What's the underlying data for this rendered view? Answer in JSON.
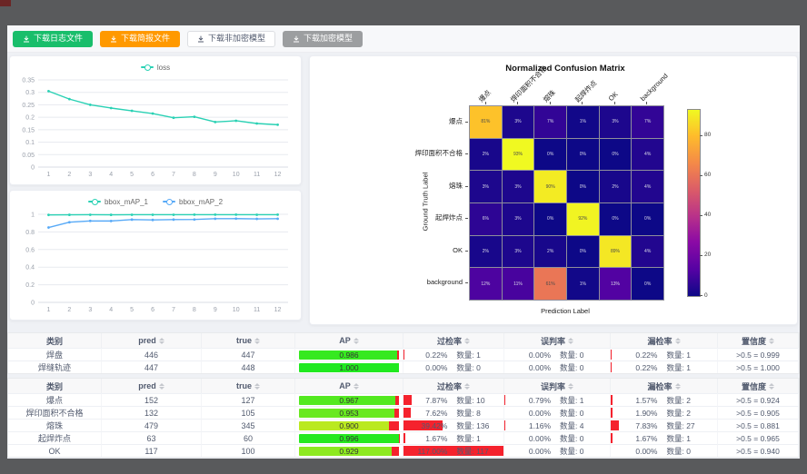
{
  "toolbar": {
    "buttons": [
      {
        "label": "下载日志文件",
        "variant": "green",
        "bg": "#19be6b",
        "fg": "#ffffff"
      },
      {
        "label": "下载简报文件",
        "variant": "orange",
        "bg": "#ff9900",
        "fg": "#ffffff"
      },
      {
        "label": "下载非加密模型",
        "variant": "plain",
        "bg": "#ffffff",
        "fg": "#515a6e"
      },
      {
        "label": "下载加密模型",
        "variant": "gray",
        "bg": "#9c9ea0",
        "fg": "#ffffff"
      }
    ]
  },
  "chart_data": [
    {
      "type": "line",
      "title": "loss",
      "x": [
        1,
        2,
        3,
        4,
        5,
        6,
        7,
        8,
        9,
        10,
        11,
        12
      ],
      "ylim": [
        0,
        0.35
      ],
      "yticks": [
        0,
        0.05,
        0.1,
        0.15,
        0.2,
        0.25,
        0.3,
        0.35
      ],
      "legend_position": "top",
      "grid": true,
      "series": [
        {
          "name": "loss",
          "color": "#2ad1b4",
          "values": [
            0.305,
            0.273,
            0.25,
            0.237,
            0.226,
            0.215,
            0.198,
            0.202,
            0.181,
            0.186,
            0.175,
            0.17
          ]
        }
      ]
    },
    {
      "type": "line",
      "title": "bbox_mAP",
      "x": [
        1,
        2,
        3,
        4,
        5,
        6,
        7,
        8,
        9,
        10,
        11,
        12
      ],
      "ylim": [
        0,
        1
      ],
      "yticks": [
        0,
        0.2,
        0.4,
        0.6,
        0.8,
        1
      ],
      "legend_position": "top",
      "grid": true,
      "series": [
        {
          "name": "bbox_mAP_1",
          "color": "#2ad1b4",
          "values": [
            0.993,
            0.994,
            0.995,
            0.994,
            0.995,
            0.995,
            0.995,
            0.996,
            0.996,
            0.996,
            0.995,
            0.996
          ]
        },
        {
          "name": "bbox_mAP_2",
          "color": "#58aaf7",
          "values": [
            0.85,
            0.91,
            0.925,
            0.924,
            0.94,
            0.936,
            0.94,
            0.941,
            0.95,
            0.951,
            0.948,
            0.95
          ]
        }
      ]
    },
    {
      "type": "heatmap",
      "title": "Normalized Confusion Matrix",
      "xlabel": "Prediction Label",
      "ylabel": "Ground Truth Label",
      "labels": [
        "爆点",
        "焊印面积不合格",
        "熔珠",
        "起焊炸点",
        "OK",
        "background"
      ],
      "unit": "%",
      "vmax": 93,
      "colormap": "plasma",
      "colorbar_ticks": [
        80,
        60,
        40,
        20,
        0
      ],
      "matrix": [
        [
          81,
          3,
          7,
          1,
          3,
          7
        ],
        [
          2,
          93,
          0,
          0,
          0,
          4
        ],
        [
          3,
          3,
          90,
          0,
          2,
          4
        ],
        [
          6,
          3,
          0,
          92,
          0,
          0
        ],
        [
          2,
          3,
          2,
          0,
          89,
          4
        ],
        [
          12,
          11,
          61,
          1,
          13,
          0
        ]
      ]
    }
  ],
  "tables": {
    "count_label": "数量:",
    "accent_green": "#3ddc3d",
    "accent_red": "#f5222d",
    "columns": [
      {
        "label": "类别",
        "sortable": false
      },
      {
        "label": "pred",
        "sortable": true
      },
      {
        "label": "true",
        "sortable": true
      },
      {
        "label": "AP",
        "sortable": true
      },
      {
        "label": "过检率",
        "sortable": true
      },
      {
        "label": "误判率",
        "sortable": true
      },
      {
        "label": "漏检率",
        "sortable": true
      },
      {
        "label": "置信度",
        "sortable": true
      }
    ],
    "groups": [
      {
        "rows": [
          {
            "name": "焊盘",
            "pred": 446,
            "true": 447,
            "ap": 0.986,
            "over_pct": "0.22%",
            "over_cnt": 1,
            "over_val": 0.22,
            "mis_pct": "0.00%",
            "mis_cnt": 0,
            "mis_val": 0,
            "miss_pct": "0.22%",
            "miss_cnt": 1,
            "miss_val": 0.22,
            "conf": ">0.5 = 0.999"
          },
          {
            "name": "焊缝轨迹",
            "pred": 447,
            "true": 448,
            "ap": 1.0,
            "over_pct": "0.00%",
            "over_cnt": 0,
            "over_val": 0,
            "mis_pct": "0.00%",
            "mis_cnt": 0,
            "mis_val": 0,
            "miss_pct": "0.22%",
            "miss_cnt": 1,
            "miss_val": 0.22,
            "conf": ">0.5 = 1.000"
          }
        ]
      },
      {
        "rows": [
          {
            "name": "爆点",
            "pred": 152,
            "true": 127,
            "ap": 0.967,
            "over_pct": "7.87%",
            "over_cnt": 10,
            "over_val": 7.87,
            "mis_pct": "0.79%",
            "mis_cnt": 1,
            "mis_val": 0.79,
            "miss_pct": "1.57%",
            "miss_cnt": 2,
            "miss_val": 1.57,
            "conf": ">0.5 = 0.924"
          },
          {
            "name": "焊印面积不合格",
            "pred": 132,
            "true": 105,
            "ap": 0.953,
            "over_pct": "7.62%",
            "over_cnt": 8,
            "over_val": 7.62,
            "mis_pct": "0.00%",
            "mis_cnt": 0,
            "mis_val": 0,
            "miss_pct": "1.90%",
            "miss_cnt": 2,
            "miss_val": 1.9,
            "conf": ">0.5 = 0.905"
          },
          {
            "name": "熔珠",
            "pred": 479,
            "true": 345,
            "ap": 0.9,
            "over_pct": "39.42%",
            "over_cnt": 136,
            "over_val": 39.42,
            "mis_pct": "1.16%",
            "mis_cnt": 4,
            "mis_val": 1.16,
            "miss_pct": "7.83%",
            "miss_cnt": 27,
            "miss_val": 7.83,
            "conf": ">0.5 = 0.881"
          },
          {
            "name": "起焊炸点",
            "pred": 63,
            "true": 60,
            "ap": 0.996,
            "over_pct": "1.67%",
            "over_cnt": 1,
            "over_val": 1.67,
            "mis_pct": "0.00%",
            "mis_cnt": 0,
            "mis_val": 0,
            "miss_pct": "1.67%",
            "miss_cnt": 1,
            "miss_val": 1.67,
            "conf": ">0.5 = 0.965"
          },
          {
            "name": "OK",
            "pred": 117,
            "true": 100,
            "ap": 0.929,
            "over_pct": "117.00%",
            "over_cnt": 117,
            "over_val": 117,
            "mis_pct": "0.00%",
            "mis_cnt": 0,
            "mis_val": 0,
            "miss_pct": "0.00%",
            "miss_cnt": 0,
            "miss_val": 0,
            "conf": ">0.5 = 0.940"
          }
        ]
      }
    ]
  }
}
